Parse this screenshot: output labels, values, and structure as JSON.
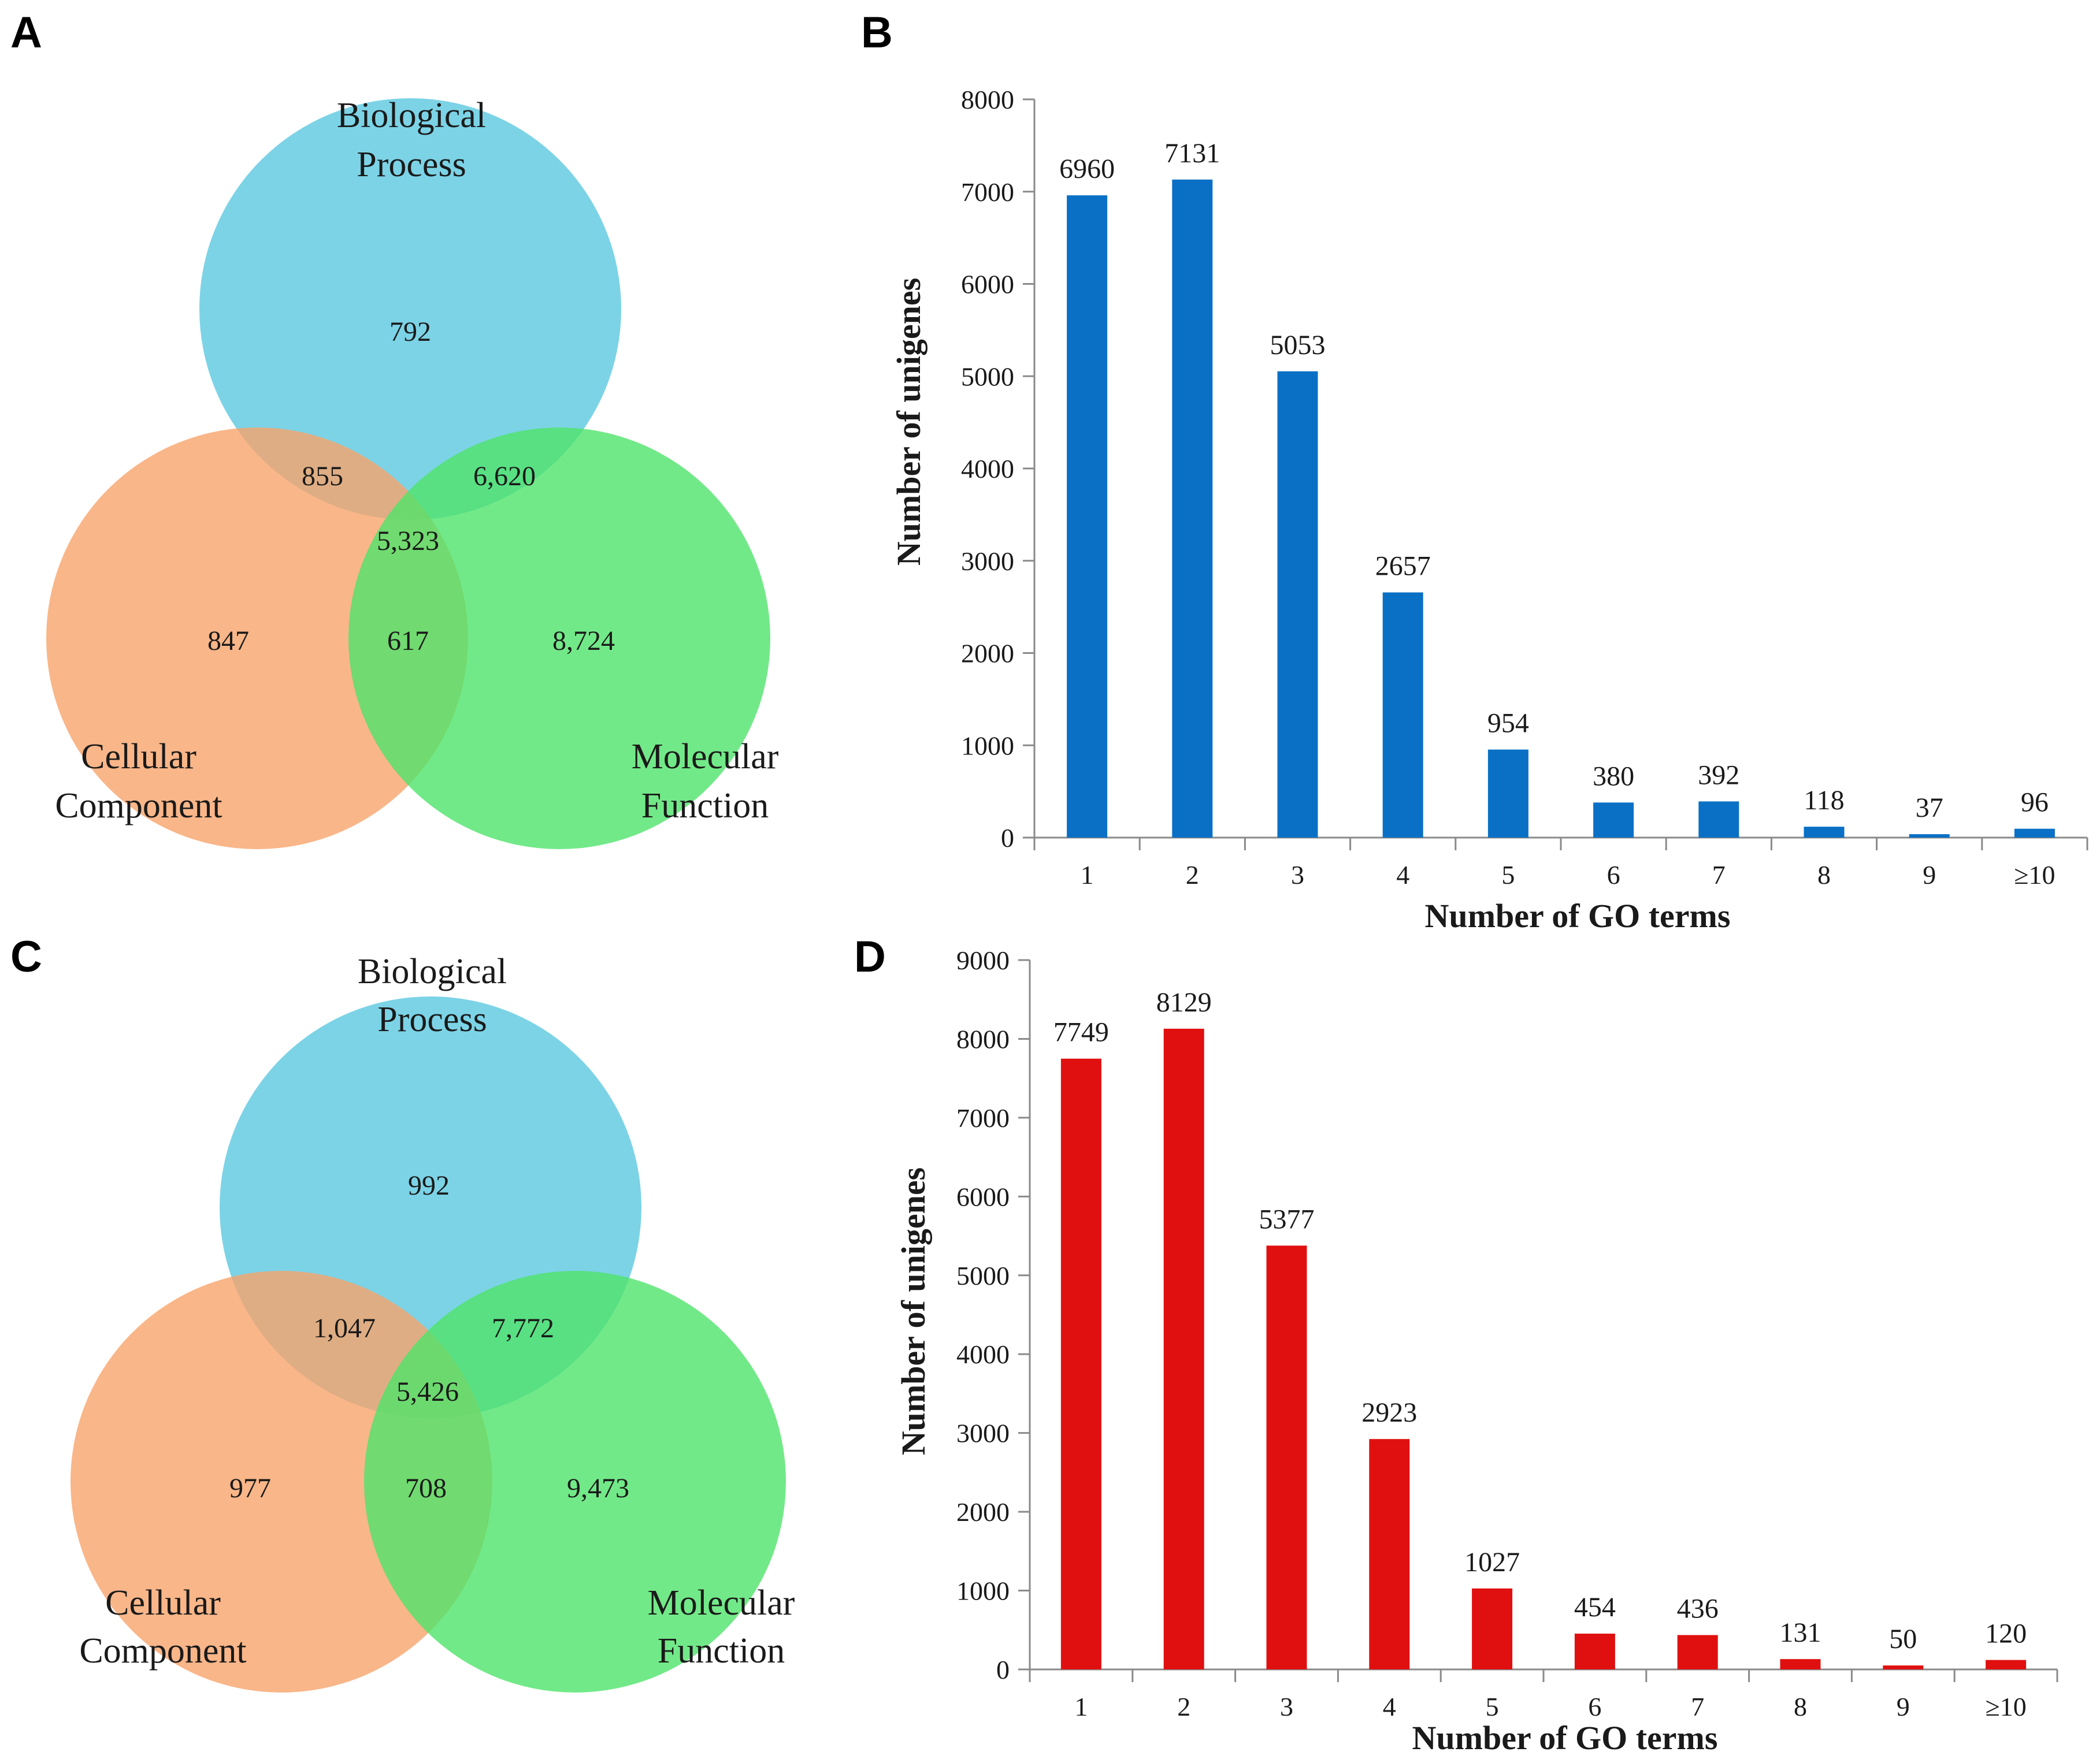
{
  "panels": {
    "A": {
      "letter": "A"
    },
    "B": {
      "letter": "B"
    },
    "C": {
      "letter": "C"
    },
    "D": {
      "letter": "D"
    }
  },
  "colors": {
    "bp": "#5bc8e0",
    "cc": "#f7a46c",
    "mf": "#4fe36a",
    "bar_B": "#0a70c6",
    "bar_D": "#e01010"
  },
  "venns": {
    "A": {
      "labels": {
        "bp1": "Biological",
        "bp2": "Process",
        "cc1": "Cellular",
        "cc2": "Component",
        "mf1": "Molecular",
        "mf2": "Function"
      },
      "counts": {
        "bp_only": "792",
        "cc_only": "847",
        "mf_only": "8,724",
        "bp_cc": "855",
        "bp_mf": "6,620",
        "cc_mf": "617",
        "all": "5,323"
      }
    },
    "C": {
      "labels": {
        "bp1": "Biological",
        "bp2": "Process",
        "cc1": "Cellular",
        "cc2": "Component",
        "mf1": "Molecular",
        "mf2": "Function"
      },
      "counts": {
        "bp_only": "992",
        "cc_only": "977",
        "mf_only": "9,473",
        "bp_cc": "1,047",
        "bp_mf": "7,772",
        "cc_mf": "708",
        "all": "5,426"
      }
    }
  },
  "chart_data": [
    {
      "panel": "A",
      "type": "venn",
      "sets": [
        "Biological Process",
        "Cellular Component",
        "Molecular Function"
      ],
      "regions": {
        "BP only": 792,
        "CC only": 847,
        "MF only": 8724,
        "BP&CC": 855,
        "BP&MF": 6620,
        "CC&MF": 617,
        "BP&CC&MF": 5323
      }
    },
    {
      "panel": "B",
      "type": "bar",
      "categories": [
        "1",
        "2",
        "3",
        "4",
        "5",
        "6",
        "7",
        "8",
        "9",
        "≥10"
      ],
      "values": [
        6960,
        7131,
        5053,
        2657,
        954,
        380,
        392,
        118,
        37,
        96
      ],
      "xlabel": "Number of GO terms",
      "ylabel": "Number of unigenes",
      "ylim": [
        0,
        8000
      ],
      "yticks": [
        0,
        1000,
        2000,
        3000,
        4000,
        5000,
        6000,
        7000,
        8000
      ],
      "grid": false
    },
    {
      "panel": "C",
      "type": "venn",
      "sets": [
        "Biological Process",
        "Cellular Component",
        "Molecular Function"
      ],
      "regions": {
        "BP only": 992,
        "CC only": 977,
        "MF only": 9473,
        "BP&CC": 1047,
        "BP&MF": 7772,
        "CC&MF": 708,
        "BP&CC&MF": 5426
      }
    },
    {
      "panel": "D",
      "type": "bar",
      "categories": [
        "1",
        "2",
        "3",
        "4",
        "5",
        "6",
        "7",
        "8",
        "9",
        "≥10"
      ],
      "values": [
        7749,
        8129,
        5377,
        2923,
        1027,
        454,
        436,
        131,
        50,
        120
      ],
      "xlabel": "Number of GO terms",
      "ylabel": "Number of unigenes",
      "ylim": [
        0,
        9000
      ],
      "yticks": [
        0,
        1000,
        2000,
        3000,
        4000,
        5000,
        6000,
        7000,
        8000,
        9000
      ],
      "grid": false
    }
  ]
}
